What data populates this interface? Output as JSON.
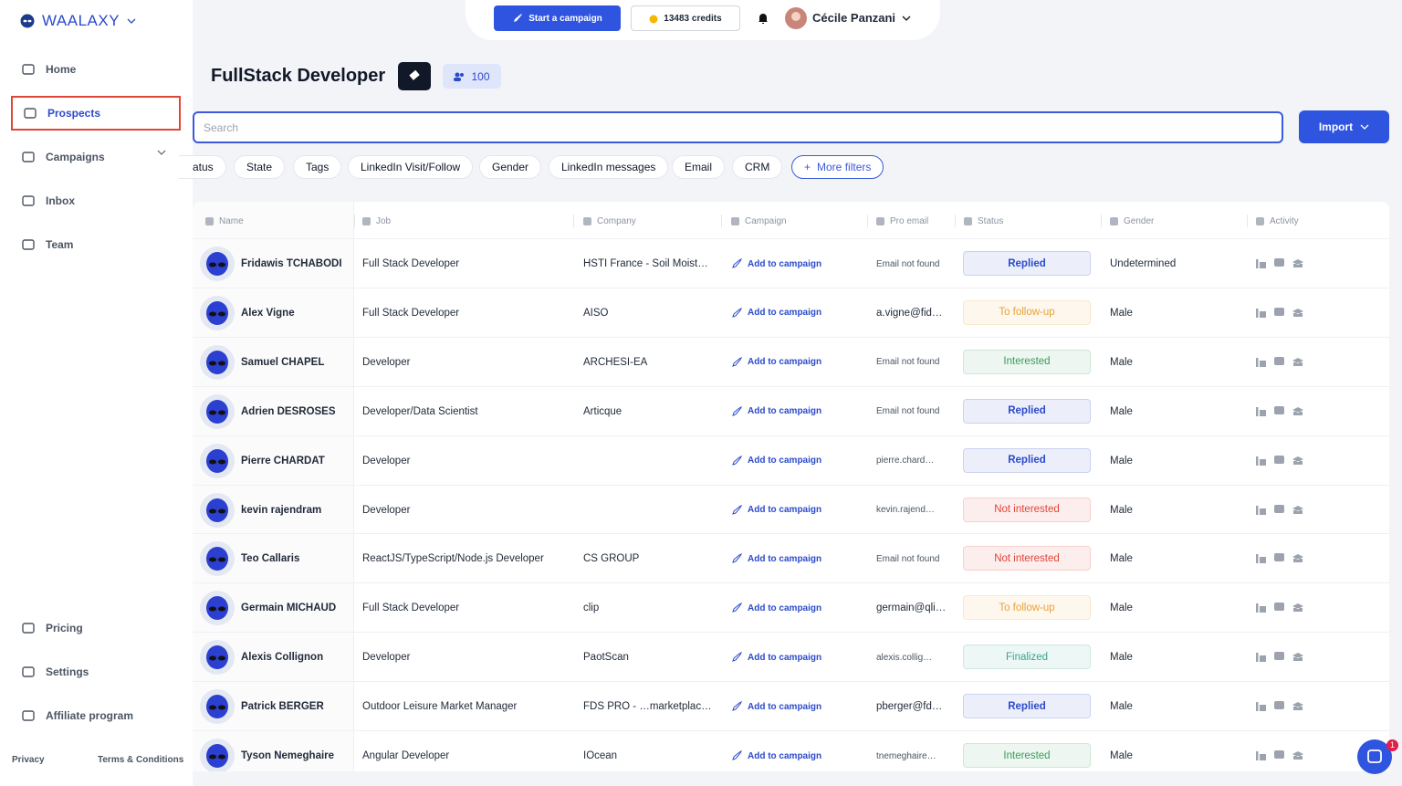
{
  "brand": "WAALAXY",
  "nav": [
    "Home",
    "Prospects",
    "Campaigns",
    "Inbox",
    "Team"
  ],
  "nav_bottom": [
    "Pricing",
    "Settings",
    "Affiliate program"
  ],
  "footer": [
    "Privacy",
    "Terms & Conditions"
  ],
  "topbar": {
    "start": "Start a campaign",
    "credits": "13483 credits",
    "user": "Cécile Panzani"
  },
  "list": {
    "title": "FullStack Developer",
    "count": 100
  },
  "search_placeholder": "Search",
  "import": "Import",
  "filters": [
    "atus",
    "State",
    "Tags",
    "LinkedIn Visit/Follow",
    "Gender",
    "LinkedIn messages",
    "Email",
    "CRM"
  ],
  "more_filters": "More filters",
  "notification_count": 1,
  "table": {
    "columns": [
      "Name",
      "Job",
      "Company",
      "Campaign",
      "Pro email",
      "Status",
      "Gender",
      "Activity"
    ],
    "rows": [
      {
        "name": "Fridawis TCHABODI",
        "job": "Full Stack Developer",
        "company": "HSTI France - Soil Moist…",
        "campaign": "Add to campaign",
        "email": "Email not found",
        "status": "Replied",
        "status_color": "#2b4acb",
        "gender": "Undetermined"
      },
      {
        "name": "Alex Vigne",
        "job": "Full Stack Developer",
        "company": "AISO",
        "campaign": "Add to campaign",
        "email": "a.vigne@fid…",
        "status": "To follow-up",
        "status_color": "#e8a23a",
        "gender": "Male"
      },
      {
        "name": "Samuel CHAPEL",
        "job": "Developer",
        "company": "ARCHESI-EA",
        "campaign": "Add to campaign",
        "email": "Email not found",
        "status": "Interested",
        "status_color": "#3a9b5c",
        "gender": "Male"
      },
      {
        "name": "Adrien DESROSES",
        "job": "Developer/Data Scientist",
        "company": "Articque",
        "campaign": "Add to campaign",
        "email": "Email not found",
        "status": "Replied",
        "status_color": "#2b4acb",
        "gender": "Male"
      },
      {
        "name": "Pierre CHARDAT",
        "job": "Developer",
        "company": "",
        "campaign": "Add to campaign",
        "email": "pierre.chard…",
        "status": "Replied",
        "status_color": "#2b4acb",
        "gender": "Male"
      },
      {
        "name": "kevin rajendram",
        "job": "Developer",
        "company": "",
        "campaign": "Add to campaign",
        "email": "kevin.rajend…",
        "status": "Not interested",
        "status_color": "#e0453a",
        "gender": "Male"
      },
      {
        "name": "Teo Callaris",
        "job": "ReactJS/TypeScript/Node.js Developer",
        "company": "CS GROUP",
        "campaign": "Add to campaign",
        "email": "Email not found",
        "status": "Not interested",
        "status_color": "#e0453a",
        "gender": "Male"
      },
      {
        "name": "Germain MICHAUD",
        "job": "Full Stack Developer",
        "company": "clip",
        "campaign": "Add to campaign",
        "email": "germain@qli…",
        "status": "To follow-up",
        "status_color": "#e8a23a",
        "gender": "Male"
      },
      {
        "name": "Alexis Collignon",
        "job": "Developer",
        "company": "PaotScan",
        "campaign": "Add to campaign",
        "email": "alexis.collig…",
        "status": "Finalized",
        "status_color": "#3aa58c",
        "gender": "Male"
      },
      {
        "name": "Patrick BERGER",
        "job": "Outdoor Leisure Market Manager",
        "company": "FDS PRO - …marketplac…",
        "campaign": "Add to campaign",
        "email": "pberger@fd…",
        "status": "Replied",
        "status_color": "#2b4acb",
        "gender": "Male"
      },
      {
        "name": "Tyson Nemeghaire",
        "job": "Angular Developer",
        "company": "IOcean",
        "campaign": "Add to campaign",
        "email": "tnemeghaire…",
        "status": "Interested",
        "status_color": "#3a9b5c",
        "gender": "Male"
      }
    ]
  }
}
